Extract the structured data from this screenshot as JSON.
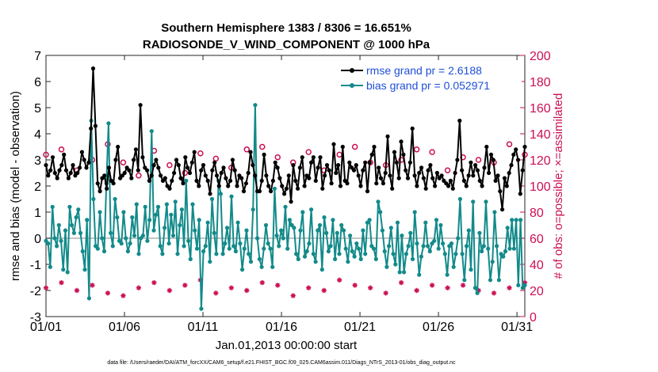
{
  "chart_data": {
    "type": "line",
    "title_line1": "Southern Hemisphere 1383 / 8306 = 16.651%",
    "title_line2": "RADIOSONDE_V_WIND_COMPONENT @ 1000 hPa",
    "xlabel": "Jan.01,2013 00:00:00 start",
    "ylabel_left": "rmse and bias (model - observation)",
    "ylabel_right": "# of obs: o=possible; ×=assimilated",
    "footer": "data file: /Users/raeder/DAI/ATM_forcXX/CAM6_setup/f.e21.FHIST_BGC.f09_025.CAM6assim.011/Diags_NTrS_2013-01/obs_diag_output.nc",
    "x_ticks": [
      "01/01",
      "01/06",
      "01/11",
      "01/16",
      "01/21",
      "01/26",
      "01/31"
    ],
    "x_tick_days": [
      1,
      6,
      11,
      16,
      21,
      26,
      31
    ],
    "xlim": [
      1,
      31.5
    ],
    "ylim_left": [
      -3,
      7
    ],
    "y_ticks_left": [
      "-3",
      "-2",
      "-1",
      "0",
      "1",
      "2",
      "3",
      "4",
      "5",
      "6",
      "7"
    ],
    "ylim_right": [
      0,
      200
    ],
    "y_ticks_right": [
      "0",
      "20",
      "40",
      "60",
      "80",
      "100",
      "120",
      "140",
      "160",
      "180",
      "200"
    ],
    "colors": {
      "rmse": "#000000",
      "bias": "#138a8a",
      "counts": "#cc0f55",
      "legend_text": "#1f4fd6",
      "zero_line": "#b0b0b0"
    },
    "series": [
      {
        "name": "rmse grand pr = 2.6188",
        "axis": "left",
        "values": [
          2.8,
          2.4,
          2.6,
          3.1,
          2.5,
          2.3,
          2.6,
          2.8,
          3.2,
          2.6,
          2.3,
          2.5,
          2.8,
          2.4,
          2.5,
          2.7,
          3.3,
          3.0,
          2.7,
          2.9,
          4.2,
          6.5,
          4.3,
          2.1,
          1.8,
          2.3,
          2.4,
          1.9,
          2.7,
          2.2,
          2.1,
          3.0,
          3.5,
          2.3,
          2.4,
          2.5,
          2.7,
          2.6,
          2.3,
          3.0,
          3.4,
          2.6,
          5.1,
          3.1,
          2.7,
          2.6,
          2.2,
          2.4,
          2.8,
          3.0,
          2.7,
          2.4,
          2.2,
          2.3,
          2.0,
          1.9,
          2.2,
          2.5,
          3.0,
          2.8,
          2.3,
          2.1,
          3.1,
          2.7,
          2.5,
          2.9,
          3.3,
          2.2,
          2.0,
          2.6,
          2.8,
          2.4,
          2.2,
          1.7,
          2.6,
          2.9,
          2.4,
          2.0,
          2.5,
          2.7,
          2.3,
          2.0,
          2.2,
          3.0,
          2.6,
          2.0,
          2.4,
          2.3,
          1.8,
          2.1,
          2.5,
          3.3,
          2.8,
          2.4,
          1.8,
          1.8,
          2.2,
          3.2,
          2.4,
          2.0,
          1.8,
          2.2,
          2.9,
          2.7,
          2.3,
          2.0,
          1.7,
          1.9,
          2.4,
          1.4,
          2.8,
          2.2,
          1.9,
          2.7,
          3.1,
          2.0,
          2.4,
          2.3,
          2.9,
          3.1,
          2.2,
          2.7,
          3.1,
          1.9,
          2.4,
          2.8,
          2.6,
          2.1,
          3.6,
          2.5,
          2.8,
          2.0,
          3.5,
          2.2,
          2.1,
          2.9,
          2.7,
          2.6,
          2.8,
          2.4,
          2.0,
          2.6,
          2.9,
          1.8,
          2.9,
          3.2,
          3.5,
          2.1,
          2.7,
          2.3,
          2.1,
          2.5,
          3.9,
          2.4,
          1.9,
          3.3,
          2.9,
          2.3,
          3.7,
          3.2,
          2.6,
          2.3,
          2.9,
          4.2,
          2.4,
          2.0,
          2.5,
          2.7,
          2.3,
          1.9,
          2.6,
          2.8,
          2.3,
          2.0,
          2.5,
          2.3,
          2.4,
          2.2,
          2.1,
          2.0,
          2.2,
          1.9,
          2.5,
          3.0,
          4.5,
          2.6,
          2.2,
          2.0,
          2.4,
          2.9,
          2.4,
          2.8,
          2.6,
          2.2,
          2.0,
          2.7,
          3.5,
          2.5,
          3.2,
          3.0,
          2.2,
          2.4,
          1.8,
          1.1,
          2.3,
          2.0,
          2.5,
          2.8,
          3.2,
          3.4,
          3.0,
          1.7,
          2.6,
          3.5
        ]
      },
      {
        "name": "bias grand pr = 0.052971",
        "axis": "left",
        "values": [
          -0.1,
          -0.2,
          -1.1,
          1.2,
          0.0,
          -0.3,
          0.5,
          -0.1,
          -1.2,
          0.3,
          -1.3,
          1.2,
          0.5,
          0.2,
          0.8,
          1.1,
          0.2,
          -0.5,
          -1.2,
          0.7,
          -2.3,
          4.5,
          1.5,
          -0.3,
          -0.4,
          1.0,
          0.0,
          -0.5,
          2.1,
          4.4,
          0.2,
          -0.3,
          1.5,
          0.8,
          -0.1,
          -0.2,
          1.0,
          0.0,
          -0.5,
          -0.2,
          0.8,
          0.1,
          1.3,
          -0.6,
          0.0,
          0.1,
          1.2,
          -0.1,
          0.7,
          4.1,
          0.3,
          0.9,
          1.2,
          -0.3,
          -0.6,
          0.4,
          1.3,
          -0.2,
          0.9,
          0.1,
          1.4,
          -0.6,
          0.5,
          1.1,
          -0.3,
          2.2,
          -0.1,
          -0.8,
          1.3,
          0.3,
          -0.4,
          0.7,
          -2.7,
          -0.5,
          -0.3,
          0.6,
          -0.9,
          1.5,
          0.2,
          -0.6,
          2.2,
          1.7,
          -0.6,
          -0.2,
          0.4,
          -0.4,
          1.6,
          -0.3,
          -0.5,
          0.6,
          -0.2,
          -1.2,
          -0.4,
          0.3,
          -0.6,
          -0.9,
          1.1,
          5.1,
          0.0,
          -0.8,
          -1.1,
          -0.4,
          0.5,
          -0.2,
          -0.4,
          -1.1,
          1.9,
          0.1,
          -0.3,
          0.3,
          0.0,
          1.2,
          -0.4,
          0.7,
          0.5,
          0.4,
          -0.6,
          -0.8,
          0.3,
          1.0,
          -0.7,
          -0.5,
          -0.2,
          1.1,
          -0.6,
          -0.9,
          0.3,
          0.5,
          -1.2,
          0.8,
          0.2,
          -0.5,
          -0.3,
          0.7,
          -0.8,
          0.2,
          -0.6,
          0.5,
          0.3,
          -0.4,
          -0.9,
          0.1,
          -0.5,
          -0.7,
          -0.2,
          -0.4,
          -0.8,
          0.3,
          -0.6,
          0.6,
          0.7,
          -0.3,
          -0.4,
          -0.8,
          1.4,
          1.0,
          0.3,
          -0.5,
          -1.1,
          -0.3,
          0.4,
          -0.6,
          -1.0,
          0.6,
          -1.3,
          0.1,
          -1.3,
          -0.6,
          -0.3,
          0.2,
          -0.8,
          1.0,
          -0.2,
          -1.4,
          -0.7,
          -0.3,
          0.6,
          -0.3,
          -0.5,
          -0.2,
          -0.1,
          0.7,
          -0.4,
          0.5,
          -0.2,
          -0.6,
          -1.4,
          -0.3,
          -0.2,
          -1.1,
          -0.6,
          0.0,
          1.5,
          -0.6,
          -1.6,
          -0.3,
          0.3,
          -1.2,
          1.4,
          -1.9,
          -2.1,
          0.2,
          -0.5,
          -0.3,
          1.4,
          -0.4,
          -1.6,
          -0.9,
          1.0,
          -0.3,
          -1.6,
          -0.6,
          -0.7,
          -0.5,
          0.4,
          -0.4,
          0.7,
          -0.4,
          0.7,
          -1.8,
          0.7,
          -1.9,
          -1.8
        ]
      }
    ],
    "counts": {
      "possible": [
        124,
        128,
        112,
        120,
        132,
        118,
        108,
        127,
        116,
        110,
        125,
        121,
        114,
        128,
        130,
        122,
        118,
        126,
        112,
        124,
        130,
        118,
        116,
        120,
        128,
        126,
        112,
        122,
        120,
        118,
        132,
        124
      ],
      "assimilated": [
        22,
        26,
        20,
        24,
        18,
        16,
        22,
        26,
        20,
        24,
        28,
        18,
        22,
        20,
        26,
        24,
        16,
        22,
        20,
        28,
        24,
        22,
        18,
        26,
        20,
        24,
        22,
        24,
        20,
        18,
        22,
        26
      ]
    }
  },
  "legend": {
    "position": "top-right",
    "entries": [
      "rmse grand pr = 2.6188",
      "bias grand pr = 0.052971"
    ]
  }
}
